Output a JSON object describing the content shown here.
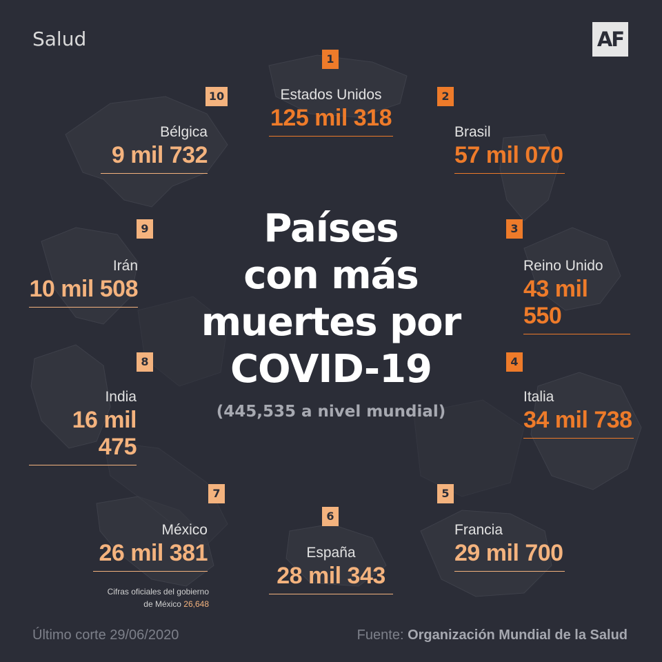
{
  "section_label": "Salud",
  "logo": "AF",
  "title": "Países\ncon más\nmuertes por\nCOVID-19",
  "subtitle": "(445,535 a nivel mundial)",
  "countries": [
    {
      "rank": "1",
      "name": "Estados Unidos",
      "value": "125 mil 318",
      "accent": "orange"
    },
    {
      "rank": "2",
      "name": "Brasil",
      "value": "57 mil 070",
      "accent": "orange"
    },
    {
      "rank": "3",
      "name": "Reino Unido",
      "value": "43 mil 550",
      "accent": "orange"
    },
    {
      "rank": "4",
      "name": "Italia",
      "value": "34 mil 738",
      "accent": "orange"
    },
    {
      "rank": "5",
      "name": "Francia",
      "value": "29 mil 700",
      "accent": "peach"
    },
    {
      "rank": "6",
      "name": "España",
      "value": "28 mil 343",
      "accent": "peach"
    },
    {
      "rank": "7",
      "name": "México",
      "value": "26 mil 381",
      "accent": "peach"
    },
    {
      "rank": "8",
      "name": "India",
      "value": "16 mil 475",
      "accent": "peach"
    },
    {
      "rank": "9",
      "name": "Irán",
      "value": "10 mil 508",
      "accent": "peach"
    },
    {
      "rank": "10",
      "name": "Bélgica",
      "value": "9 mil 732",
      "accent": "peach"
    }
  ],
  "mexico_note": {
    "line1": "Cifras oficiales del gobierno",
    "line2_prefix": "de México ",
    "line2_value": "26,648"
  },
  "footer": {
    "cutoff": "Último corte 29/06/2020",
    "source_prefix": "Fuente: ",
    "source": "Organización Mundial de la Salud"
  },
  "colors": {
    "background": "#2b2d37",
    "accent_orange": "#ee7b2a",
    "accent_peach": "#f4b37e",
    "map": "#34363f"
  }
}
